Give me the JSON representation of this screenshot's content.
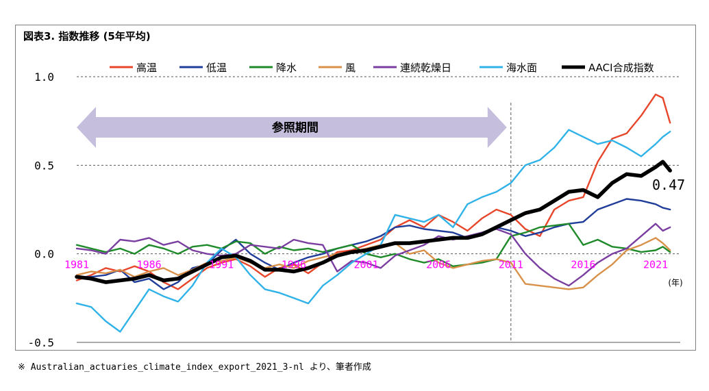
{
  "title": "図表3. 指数推移 (5年平均)",
  "source": "※ Australian_actuaries_climate_index_export_2021_3-nl より、筆者作成",
  "chart_data": {
    "type": "line",
    "xlabel": "",
    "ylabel": "",
    "x_unit": "(年)",
    "xlim": [
      1981,
      2022.7
    ],
    "ylim": [
      -0.5,
      1.0
    ],
    "y_ticks": [
      "1.0",
      "0.5",
      "0.0",
      "-0.5"
    ],
    "x_ticks": [
      "1981",
      "1986",
      "1991",
      "1996",
      "2001",
      "2006",
      "2011",
      "2016",
      "2021"
    ],
    "legend_position": "top",
    "grid": "horizontal dashed",
    "reference_period": {
      "label": "参照期間",
      "from": 1981,
      "to": 2011
    },
    "vertical_marker": 2011,
    "end_label": "0.47",
    "series": [
      {
        "name": "高温",
        "color": "#e8462a",
        "width": 2.4,
        "points": [
          [
            1981,
            -0.15
          ],
          [
            1982,
            -0.12
          ],
          [
            1983,
            -0.08
          ],
          [
            1984,
            -0.1
          ],
          [
            1985,
            -0.07
          ],
          [
            1986,
            -0.1
          ],
          [
            1987,
            -0.16
          ],
          [
            1988,
            -0.2
          ],
          [
            1989,
            -0.14
          ],
          [
            1990,
            -0.08
          ],
          [
            1991,
            -0.05
          ],
          [
            1992,
            -0.03
          ],
          [
            1993,
            -0.07
          ],
          [
            1994,
            -0.13
          ],
          [
            1995,
            -0.08
          ],
          [
            1996,
            -0.06
          ],
          [
            1997,
            -0.11
          ],
          [
            1998,
            -0.05
          ],
          [
            1999,
            0.01
          ],
          [
            2000,
            0.02
          ],
          [
            2001,
            0.05
          ],
          [
            2002,
            0.08
          ],
          [
            2003,
            0.15
          ],
          [
            2004,
            0.19
          ],
          [
            2005,
            0.15
          ],
          [
            2006,
            0.22
          ],
          [
            2007,
            0.18
          ],
          [
            2008,
            0.13
          ],
          [
            2009,
            0.2
          ],
          [
            2010,
            0.25
          ],
          [
            2011,
            0.22
          ],
          [
            2012,
            0.14
          ],
          [
            2013,
            0.1
          ],
          [
            2014,
            0.25
          ],
          [
            2015,
            0.3
          ],
          [
            2016,
            0.32
          ],
          [
            2017,
            0.52
          ],
          [
            2018,
            0.65
          ],
          [
            2019,
            0.68
          ],
          [
            2020,
            0.78
          ],
          [
            2021,
            0.9
          ],
          [
            2021.5,
            0.88
          ],
          [
            2022,
            0.74
          ]
        ]
      },
      {
        "name": "低温",
        "color": "#1f3d99",
        "width": 2.4,
        "points": [
          [
            1981,
            -0.13
          ],
          [
            1982,
            -0.13
          ],
          [
            1983,
            -0.12
          ],
          [
            1984,
            -0.09
          ],
          [
            1985,
            -0.16
          ],
          [
            1986,
            -0.14
          ],
          [
            1987,
            -0.2
          ],
          [
            1988,
            -0.16
          ],
          [
            1989,
            -0.08
          ],
          [
            1990,
            -0.06
          ],
          [
            1991,
            0.02
          ],
          [
            1992,
            0.08
          ],
          [
            1993,
            0.0
          ],
          [
            1994,
            -0.05
          ],
          [
            1995,
            -0.09
          ],
          [
            1996,
            -0.05
          ],
          [
            1997,
            -0.02
          ],
          [
            1998,
            0.0
          ],
          [
            1999,
            0.03
          ],
          [
            2000,
            0.05
          ],
          [
            2001,
            0.07
          ],
          [
            2002,
            0.1
          ],
          [
            2003,
            0.15
          ],
          [
            2004,
            0.16
          ],
          [
            2005,
            0.14
          ],
          [
            2006,
            0.13
          ],
          [
            2007,
            0.12
          ],
          [
            2008,
            0.09
          ],
          [
            2009,
            0.12
          ],
          [
            2010,
            0.15
          ],
          [
            2011,
            0.13
          ],
          [
            2012,
            0.1
          ],
          [
            2013,
            0.12
          ],
          [
            2014,
            0.15
          ],
          [
            2015,
            0.17
          ],
          [
            2016,
            0.18
          ],
          [
            2017,
            0.25
          ],
          [
            2018,
            0.28
          ],
          [
            2019,
            0.31
          ],
          [
            2020,
            0.3
          ],
          [
            2021,
            0.28
          ],
          [
            2021.5,
            0.26
          ],
          [
            2022,
            0.25
          ]
        ]
      },
      {
        "name": "降水",
        "color": "#1e8a2a",
        "width": 2.4,
        "points": [
          [
            1981,
            0.05
          ],
          [
            1982,
            0.03
          ],
          [
            1983,
            0.01
          ],
          [
            1984,
            0.03
          ],
          [
            1985,
            0.0
          ],
          [
            1986,
            0.05
          ],
          [
            1987,
            0.03
          ],
          [
            1988,
            0.0
          ],
          [
            1989,
            0.04
          ],
          [
            1990,
            0.05
          ],
          [
            1991,
            0.03
          ],
          [
            1992,
            0.07
          ],
          [
            1993,
            0.06
          ],
          [
            1994,
            0.0
          ],
          [
            1995,
            0.04
          ],
          [
            1996,
            0.02
          ],
          [
            1997,
            0.03
          ],
          [
            1998,
            0.01
          ],
          [
            1999,
            0.03
          ],
          [
            2000,
            0.05
          ],
          [
            2001,
            0.0
          ],
          [
            2002,
            -0.02
          ],
          [
            2003,
            0.0
          ],
          [
            2004,
            -0.03
          ],
          [
            2005,
            -0.05
          ],
          [
            2006,
            -0.03
          ],
          [
            2007,
            -0.07
          ],
          [
            2008,
            -0.06
          ],
          [
            2009,
            -0.05
          ],
          [
            2010,
            -0.03
          ],
          [
            2011,
            0.1
          ],
          [
            2012,
            0.12
          ],
          [
            2013,
            0.15
          ],
          [
            2014,
            0.16
          ],
          [
            2015,
            0.17
          ],
          [
            2016,
            0.05
          ],
          [
            2017,
            0.08
          ],
          [
            2018,
            0.04
          ],
          [
            2019,
            0.03
          ],
          [
            2020,
            0.01
          ],
          [
            2021,
            0.02
          ],
          [
            2021.5,
            0.04
          ],
          [
            2022,
            0.01
          ]
        ]
      },
      {
        "name": "風",
        "color": "#d9914a",
        "width": 2.4,
        "points": [
          [
            1981,
            -0.12
          ],
          [
            1982,
            -0.1
          ],
          [
            1983,
            -0.11
          ],
          [
            1984,
            -0.09
          ],
          [
            1985,
            -0.13
          ],
          [
            1986,
            -0.1
          ],
          [
            1987,
            -0.08
          ],
          [
            1988,
            -0.12
          ],
          [
            1989,
            -0.09
          ],
          [
            1990,
            -0.05
          ],
          [
            1991,
            -0.04
          ],
          [
            1992,
            -0.02
          ],
          [
            1993,
            -0.05
          ],
          [
            1994,
            -0.08
          ],
          [
            1995,
            -0.06
          ],
          [
            1996,
            -0.08
          ],
          [
            1997,
            -0.04
          ],
          [
            1998,
            -0.02
          ],
          [
            1999,
            0.0
          ],
          [
            2000,
            0.01
          ],
          [
            2001,
            0.03
          ],
          [
            2002,
            0.05
          ],
          [
            2003,
            0.06
          ],
          [
            2004,
            0.0
          ],
          [
            2005,
            0.02
          ],
          [
            2006,
            -0.05
          ],
          [
            2007,
            -0.08
          ],
          [
            2008,
            -0.06
          ],
          [
            2009,
            -0.04
          ],
          [
            2010,
            -0.03
          ],
          [
            2011,
            -0.05
          ],
          [
            2012,
            -0.17
          ],
          [
            2013,
            -0.18
          ],
          [
            2014,
            -0.19
          ],
          [
            2015,
            -0.2
          ],
          [
            2016,
            -0.19
          ],
          [
            2017,
            -0.12
          ],
          [
            2018,
            -0.06
          ],
          [
            2019,
            0.02
          ],
          [
            2020,
            0.05
          ],
          [
            2021,
            0.09
          ],
          [
            2021.5,
            0.06
          ],
          [
            2022,
            0.02
          ]
        ]
      },
      {
        "name": "連続乾燥日",
        "color": "#7a3ea0",
        "width": 2.4,
        "points": [
          [
            1981,
            0.03
          ],
          [
            1982,
            0.02
          ],
          [
            1983,
            0.0
          ],
          [
            1984,
            0.08
          ],
          [
            1985,
            0.07
          ],
          [
            1986,
            0.09
          ],
          [
            1987,
            0.05
          ],
          [
            1988,
            0.07
          ],
          [
            1989,
            0.02
          ],
          [
            1990,
            0.0
          ],
          [
            1991,
            -0.01
          ],
          [
            1992,
            0.0
          ],
          [
            1993,
            0.05
          ],
          [
            1994,
            0.04
          ],
          [
            1995,
            0.03
          ],
          [
            1996,
            0.08
          ],
          [
            1997,
            0.06
          ],
          [
            1998,
            0.05
          ],
          [
            1999,
            -0.1
          ],
          [
            2000,
            -0.04
          ],
          [
            2001,
            -0.05
          ],
          [
            2002,
            -0.08
          ],
          [
            2003,
            -0.01
          ],
          [
            2004,
            0.02
          ],
          [
            2005,
            0.05
          ],
          [
            2006,
            0.1
          ],
          [
            2007,
            0.08
          ],
          [
            2008,
            0.1
          ],
          [
            2009,
            0.12
          ],
          [
            2010,
            0.14
          ],
          [
            2011,
            0.11
          ],
          [
            2012,
            0.0
          ],
          [
            2013,
            -0.08
          ],
          [
            2014,
            -0.14
          ],
          [
            2015,
            -0.18
          ],
          [
            2016,
            -0.12
          ],
          [
            2017,
            -0.05
          ],
          [
            2018,
            0.0
          ],
          [
            2019,
            0.03
          ],
          [
            2020,
            0.1
          ],
          [
            2021,
            0.17
          ],
          [
            2021.5,
            0.13
          ],
          [
            2022,
            0.15
          ]
        ]
      },
      {
        "name": "海水面",
        "color": "#2fb2e8",
        "width": 2.4,
        "points": [
          [
            1981,
            -0.28
          ],
          [
            1982,
            -0.3
          ],
          [
            1983,
            -0.38
          ],
          [
            1984,
            -0.44
          ],
          [
            1985,
            -0.32
          ],
          [
            1986,
            -0.2
          ],
          [
            1987,
            -0.24
          ],
          [
            1988,
            -0.27
          ],
          [
            1989,
            -0.18
          ],
          [
            1990,
            -0.05
          ],
          [
            1991,
            0.03
          ],
          [
            1992,
            -0.02
          ],
          [
            1993,
            -0.12
          ],
          [
            1994,
            -0.2
          ],
          [
            1995,
            -0.22
          ],
          [
            1996,
            -0.25
          ],
          [
            1997,
            -0.28
          ],
          [
            1998,
            -0.18
          ],
          [
            1999,
            -0.12
          ],
          [
            2000,
            -0.05
          ],
          [
            2001,
            0.0
          ],
          [
            2002,
            0.05
          ],
          [
            2003,
            0.22
          ],
          [
            2004,
            0.2
          ],
          [
            2005,
            0.18
          ],
          [
            2006,
            0.22
          ],
          [
            2007,
            0.15
          ],
          [
            2008,
            0.28
          ],
          [
            2009,
            0.32
          ],
          [
            2010,
            0.35
          ],
          [
            2011,
            0.4
          ],
          [
            2012,
            0.5
          ],
          [
            2013,
            0.53
          ],
          [
            2014,
            0.6
          ],
          [
            2015,
            0.7
          ],
          [
            2016,
            0.66
          ],
          [
            2017,
            0.62
          ],
          [
            2018,
            0.64
          ],
          [
            2019,
            0.6
          ],
          [
            2020,
            0.55
          ],
          [
            2021,
            0.62
          ],
          [
            2021.5,
            0.66
          ],
          [
            2022,
            0.69
          ]
        ]
      },
      {
        "name": "AACI合成指数",
        "color": "#000000",
        "width": 5.5,
        "points": [
          [
            1981,
            -0.13
          ],
          [
            1982,
            -0.14
          ],
          [
            1983,
            -0.16
          ],
          [
            1984,
            -0.15
          ],
          [
            1985,
            -0.14
          ],
          [
            1986,
            -0.12
          ],
          [
            1987,
            -0.15
          ],
          [
            1988,
            -0.14
          ],
          [
            1989,
            -0.1
          ],
          [
            1990,
            -0.06
          ],
          [
            1991,
            -0.02
          ],
          [
            1992,
            -0.01
          ],
          [
            1993,
            -0.04
          ],
          [
            1994,
            -0.09
          ],
          [
            1995,
            -0.09
          ],
          [
            1996,
            -0.1
          ],
          [
            1997,
            -0.08
          ],
          [
            1998,
            -0.05
          ],
          [
            1999,
            -0.01
          ],
          [
            2000,
            0.01
          ],
          [
            2001,
            0.02
          ],
          [
            2002,
            0.04
          ],
          [
            2003,
            0.06
          ],
          [
            2004,
            0.06
          ],
          [
            2005,
            0.07
          ],
          [
            2006,
            0.08
          ],
          [
            2007,
            0.09
          ],
          [
            2008,
            0.09
          ],
          [
            2009,
            0.11
          ],
          [
            2010,
            0.15
          ],
          [
            2011,
            0.19
          ],
          [
            2012,
            0.23
          ],
          [
            2013,
            0.25
          ],
          [
            2014,
            0.3
          ],
          [
            2015,
            0.35
          ],
          [
            2016,
            0.36
          ],
          [
            2017,
            0.32
          ],
          [
            2018,
            0.4
          ],
          [
            2019,
            0.45
          ],
          [
            2020,
            0.44
          ],
          [
            2021,
            0.49
          ],
          [
            2021.5,
            0.52
          ],
          [
            2022,
            0.47
          ]
        ]
      }
    ]
  }
}
